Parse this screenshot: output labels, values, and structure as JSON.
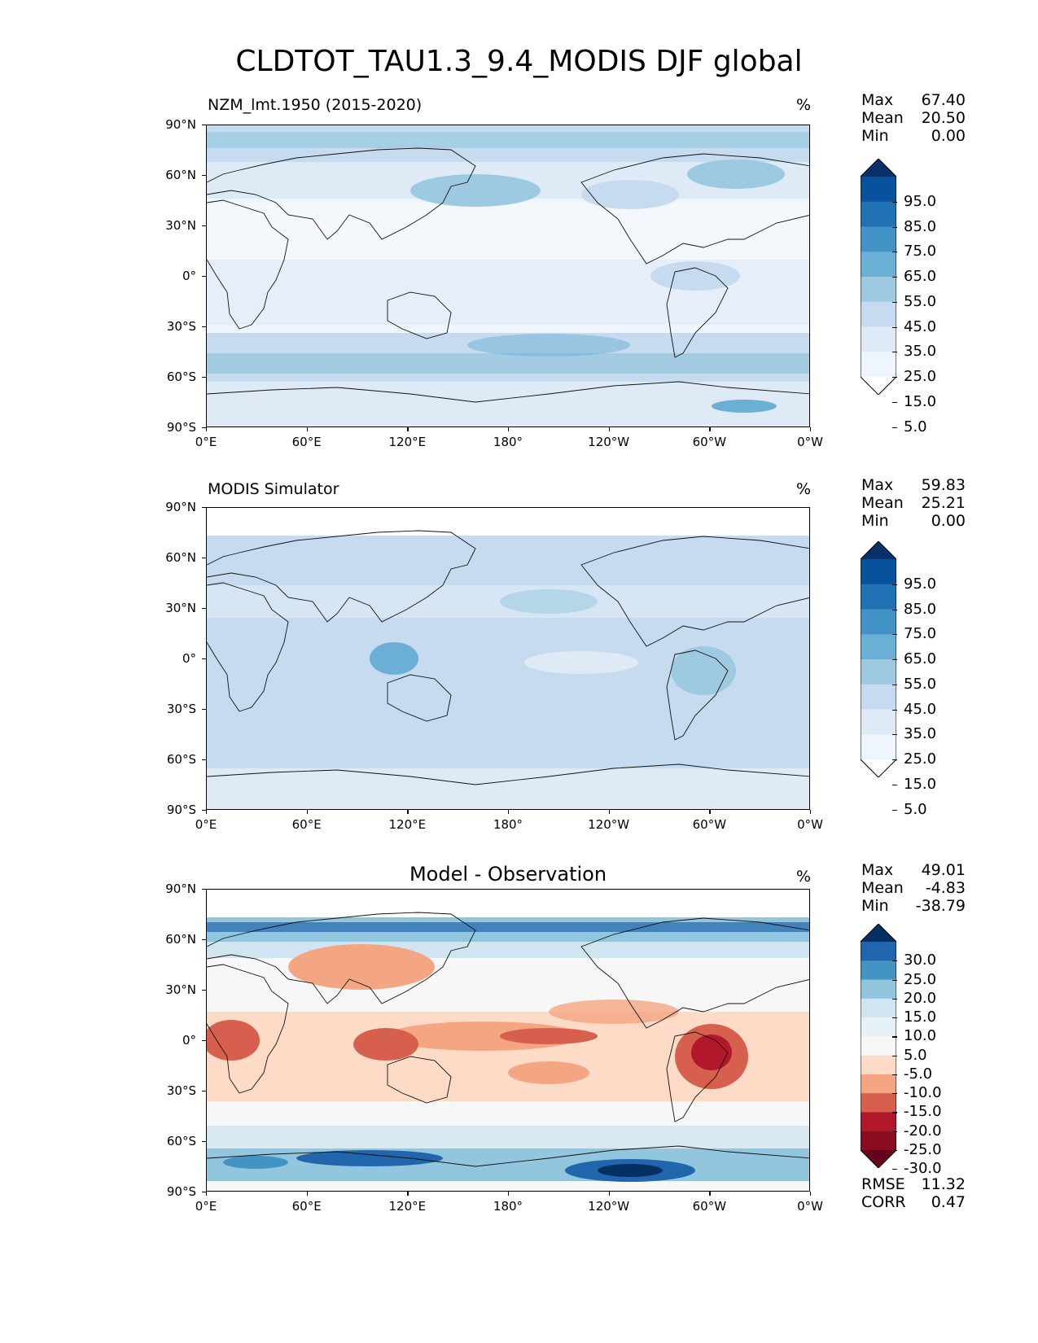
{
  "title": "CLDTOT_TAU1.3_9.4_MODIS DJF global",
  "axes": {
    "y_ticks": [
      "90°N",
      "60°N",
      "30°N",
      "0°",
      "30°S",
      "60°S",
      "90°S"
    ],
    "x_ticks": [
      "0°E",
      "60°E",
      "120°E",
      "180°",
      "120°W",
      "60°W",
      "0°W"
    ]
  },
  "panels": [
    {
      "title": "NZM_lmt.1950 (2015-2020)",
      "unit": "%",
      "stats": [
        {
          "label": "Max",
          "value": "67.40"
        },
        {
          "label": "Mean",
          "value": "20.50"
        },
        {
          "label": "Min",
          "value": "0.00"
        }
      ],
      "colorbar_labels": [
        "95.0",
        "85.0",
        "75.0",
        "65.0",
        "55.0",
        "45.0",
        "35.0",
        "25.0",
        "15.0",
        "5.0"
      ],
      "colorbar_colors": [
        "#08306b",
        "#08519c",
        "#2171b5",
        "#4292c6",
        "#6baed6",
        "#9ecae1",
        "#c6dbef",
        "#deebf7",
        "#eef5fc",
        "#ffffff"
      ]
    },
    {
      "title": "MODIS Simulator",
      "unit": "%",
      "stats": [
        {
          "label": "Max",
          "value": "59.83"
        },
        {
          "label": "Mean",
          "value": "25.21"
        },
        {
          "label": "Min",
          "value": "0.00"
        }
      ],
      "colorbar_labels": [
        "95.0",
        "85.0",
        "75.0",
        "65.0",
        "55.0",
        "45.0",
        "35.0",
        "25.0",
        "15.0",
        "5.0"
      ],
      "colorbar_colors": [
        "#08306b",
        "#08519c",
        "#2171b5",
        "#4292c6",
        "#6baed6",
        "#9ecae1",
        "#c6dbef",
        "#deebf7",
        "#eef5fc",
        "#ffffff"
      ]
    },
    {
      "title": "Model - Observation",
      "unit": "%",
      "stats": [
        {
          "label": "Max",
          "value": "49.01"
        },
        {
          "label": "Mean",
          "value": "-4.83"
        },
        {
          "label": "Min",
          "value": "-38.79"
        }
      ],
      "metrics": [
        {
          "label": "RMSE",
          "value": "11.32"
        },
        {
          "label": "CORR",
          "value": "0.47"
        }
      ],
      "colorbar_labels": [
        "30.0",
        "25.0",
        "20.0",
        "15.0",
        "10.0",
        "5.0",
        "-5.0",
        "-10.0",
        "-15.0",
        "-20.0",
        "-25.0",
        "-30.0"
      ],
      "colorbar_colors": [
        "#053061",
        "#2166ac",
        "#4393c3",
        "#92c5de",
        "#d1e5f0",
        "#e8f1f7",
        "#f7f7f7",
        "#fddbc7",
        "#f4a582",
        "#d6604d",
        "#b2182b",
        "#8a0d1f",
        "#67001f"
      ]
    }
  ]
}
